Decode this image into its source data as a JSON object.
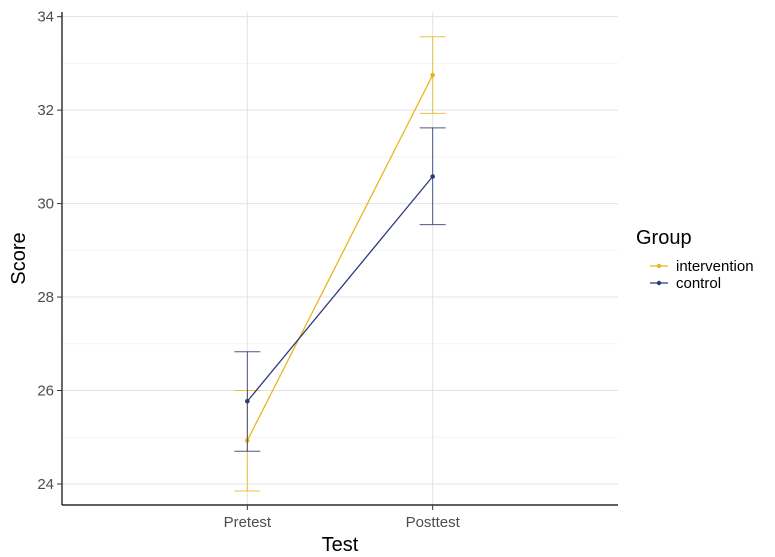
{
  "chart_data": {
    "type": "line",
    "title": "",
    "xlabel": "Test",
    "ylabel": "Score",
    "categories": [
      "Pretest",
      "Posttest"
    ],
    "ylim": [
      23.55,
      34.1
    ],
    "yticks": [
      24,
      26,
      28,
      30,
      32,
      34
    ],
    "grid": true,
    "legend": {
      "title": "Group",
      "placement": "right"
    },
    "series": [
      {
        "name": "intervention",
        "color": "#e6b820",
        "values": [
          24.93,
          32.75
        ],
        "error_low": [
          23.85,
          31.93
        ],
        "error_high": [
          26.0,
          33.57
        ]
      },
      {
        "name": "control",
        "color": "#2c3a7e",
        "values": [
          25.77,
          30.58
        ],
        "error_low": [
          24.7,
          29.55
        ],
        "error_high": [
          26.83,
          31.62
        ]
      }
    ]
  }
}
